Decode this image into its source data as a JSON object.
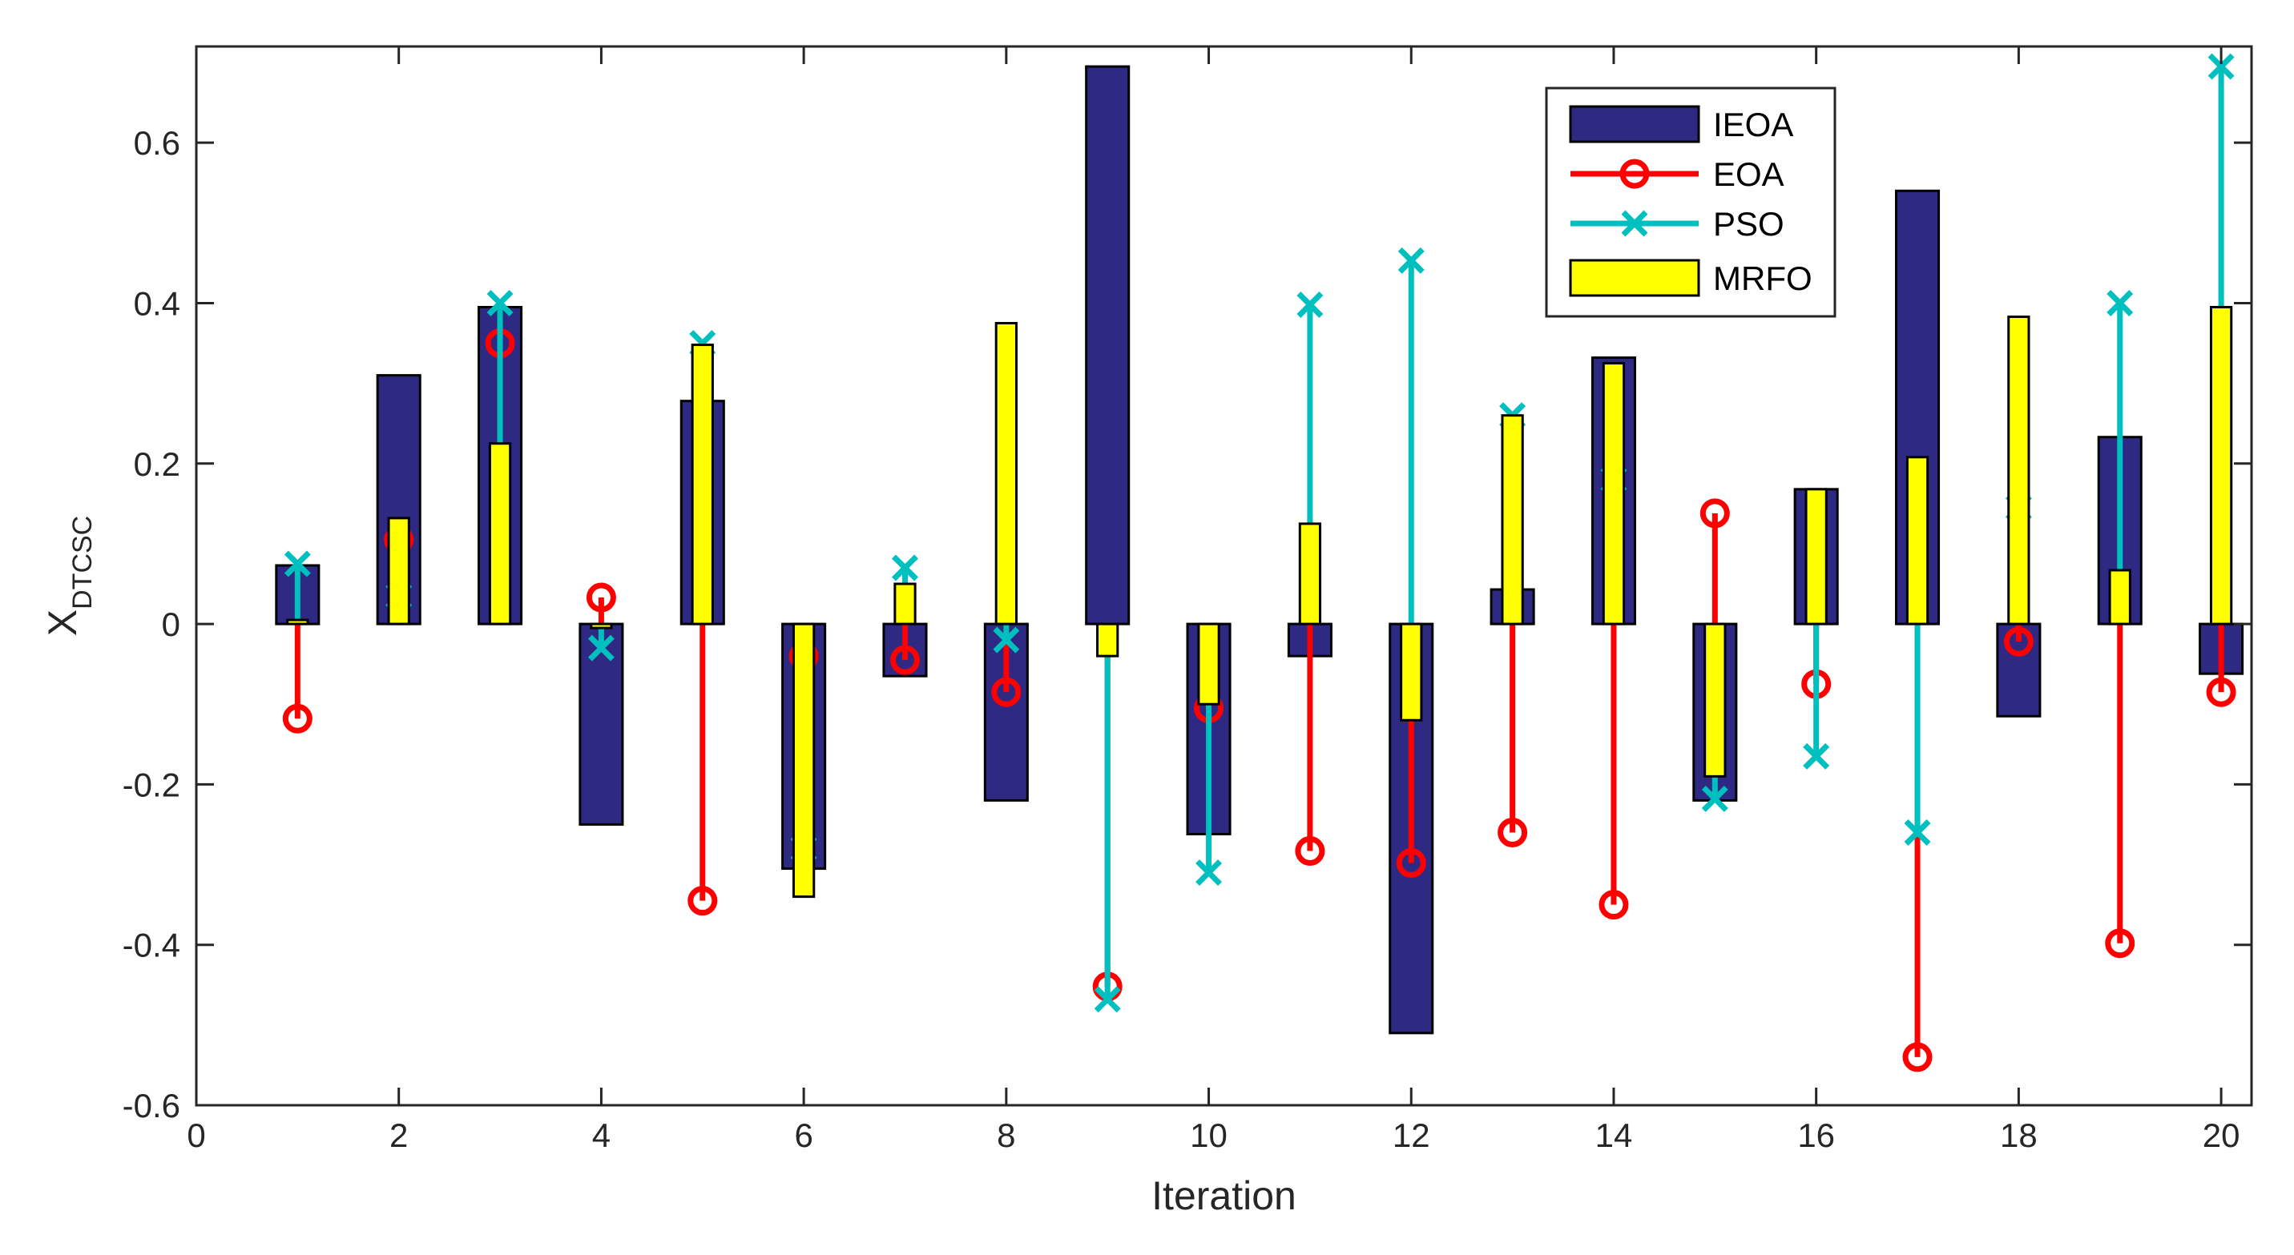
{
  "chart_data": {
    "type": "bar",
    "xlabel": "Iteration",
    "ylabel_main": "X",
    "ylabel_sub": "DTCSC",
    "xlim": [
      0,
      20.3
    ],
    "ylim": [
      -0.6,
      0.72
    ],
    "xticks": [
      0,
      2,
      4,
      6,
      8,
      10,
      12,
      14,
      16,
      18,
      20
    ],
    "yticks": [
      -0.6,
      -0.4,
      -0.2,
      0,
      0.2,
      0.4,
      0.6
    ],
    "ytick_labels": [
      "-0.6",
      "-0.4",
      "-0.2",
      "0",
      "0.2",
      "0.4",
      "0.6"
    ],
    "x": [
      1,
      2,
      3,
      4,
      5,
      6,
      7,
      8,
      9,
      10,
      11,
      12,
      13,
      14,
      15,
      16,
      17,
      18,
      19,
      20
    ],
    "legend_position": "top-right",
    "series": [
      {
        "name": "IEOA",
        "kind": "bar",
        "color": "#2e2a84",
        "values": [
          0.073,
          0.31,
          0.395,
          -0.25,
          0.278,
          -0.305,
          -0.065,
          -0.22,
          0.695,
          -0.262,
          -0.04,
          -0.51,
          0.043,
          0.332,
          -0.22,
          0.168,
          0.54,
          -0.115,
          0.233,
          -0.062
        ]
      },
      {
        "name": "EOA",
        "kind": "stem",
        "marker": "circle",
        "color": "#ff0000",
        "values": [
          -0.118,
          0.105,
          0.35,
          0.033,
          -0.345,
          -0.04,
          -0.045,
          -0.085,
          -0.452,
          -0.105,
          -0.283,
          -0.298,
          -0.26,
          -0.35,
          0.138,
          -0.075,
          -0.54,
          -0.022,
          -0.398,
          -0.085
        ]
      },
      {
        "name": "PSO",
        "kind": "stem",
        "marker": "x",
        "color": "#00bfbf",
        "values": [
          0.075,
          0.035,
          0.4,
          -0.03,
          0.35,
          -0.28,
          0.07,
          -0.02,
          -0.468,
          -0.31,
          0.398,
          0.453,
          0.26,
          0.18,
          -0.218,
          -0.165,
          -0.26,
          0.145,
          0.4,
          0.695
        ]
      },
      {
        "name": "MRFO",
        "kind": "bar",
        "color": "#ffff00",
        "values": [
          0.005,
          0.132,
          0.225,
          -0.005,
          0.348,
          -0.34,
          0.05,
          0.375,
          -0.04,
          -0.1,
          0.125,
          -0.12,
          0.26,
          0.325,
          -0.19,
          0.168,
          0.208,
          0.383,
          0.067,
          0.395
        ]
      }
    ]
  }
}
